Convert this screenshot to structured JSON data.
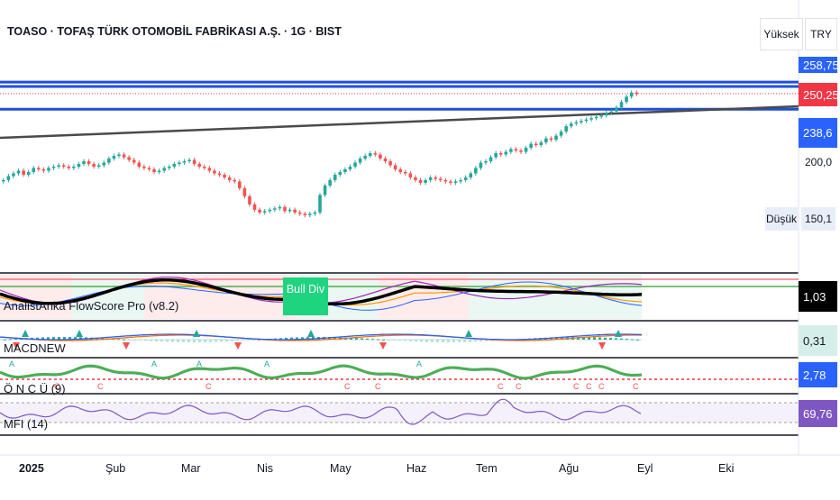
{
  "header": {
    "symbol_title": "TOASO · TOFAŞ TÜRK OTOMOBİL FABRİKASI A.Ş. · 1G · BIST",
    "high_button": "Yüksek",
    "currency_button": "TRY"
  },
  "price_scale": {
    "top_level": "258,75",
    "last_price": "250,25",
    "line_level": "238,6",
    "tick_200": "200,0",
    "tick_150": "150,1",
    "low_label": "Düşük"
  },
  "indicators": {
    "flowscore": {
      "name": "AnalistAnka FlowScore Pro (v8.2)",
      "value": "1,03",
      "badge": "Bull Div"
    },
    "macd": {
      "name": "MACDNEW",
      "value": "0,31"
    },
    "oncu": {
      "name": "Ö N C Ü (9)",
      "value": "2,78"
    },
    "mfi": {
      "name": "MFI (14)",
      "value": "69,76"
    }
  },
  "time_axis": [
    "2025",
    "Şub",
    "Mar",
    "Nis",
    "May",
    "Haz",
    "Tem",
    "Ağu",
    "Eyl",
    "Eki"
  ],
  "colors": {
    "up": "#26a69a",
    "down": "#ef5350",
    "line_blue": "#1e4fd8",
    "last_price_badge": "#f23645",
    "level_badge": "#2962ff",
    "mfi_badge": "#7e57c2",
    "macd_badge_bg": "#d6eee9",
    "oncu_badge": "#2962ff",
    "bull_div": "#1fd47f"
  },
  "chart_data": {
    "type": "candlestick",
    "x_range": [
      "2025-01-01",
      "2025-10-31"
    ],
    "y_range": [
      135,
      262
    ],
    "horizontal_levels": [
      258.75,
      250.25,
      238.6
    ],
    "close": [
      186,
      189,
      191,
      193,
      190,
      192,
      195,
      194,
      193,
      195,
      196,
      197,
      196,
      195,
      196,
      198,
      200,
      198,
      196,
      197,
      199,
      202,
      204,
      205,
      203,
      201,
      199,
      196,
      195,
      194,
      192,
      193,
      195,
      196,
      198,
      199,
      200,
      201,
      198,
      196,
      195,
      193,
      191,
      190,
      188,
      186,
      185,
      180,
      174,
      168,
      164,
      162,
      163,
      164,
      165,
      166,
      163,
      164,
      162,
      161,
      160,
      161,
      162,
      175,
      182,
      186,
      190,
      192,
      194,
      196,
      199,
      202,
      204,
      206,
      205,
      202,
      200,
      197,
      194,
      192,
      191,
      188,
      186,
      184,
      186,
      188,
      187,
      186,
      185,
      184,
      185,
      186,
      188,
      191,
      195,
      199,
      200,
      203,
      206,
      205,
      207,
      209,
      208,
      207,
      210,
      213,
      212,
      214,
      217,
      216,
      219,
      222,
      226,
      228,
      229,
      230,
      231,
      232,
      233,
      234,
      236,
      237,
      240,
      244,
      248,
      251,
      250
    ]
  }
}
